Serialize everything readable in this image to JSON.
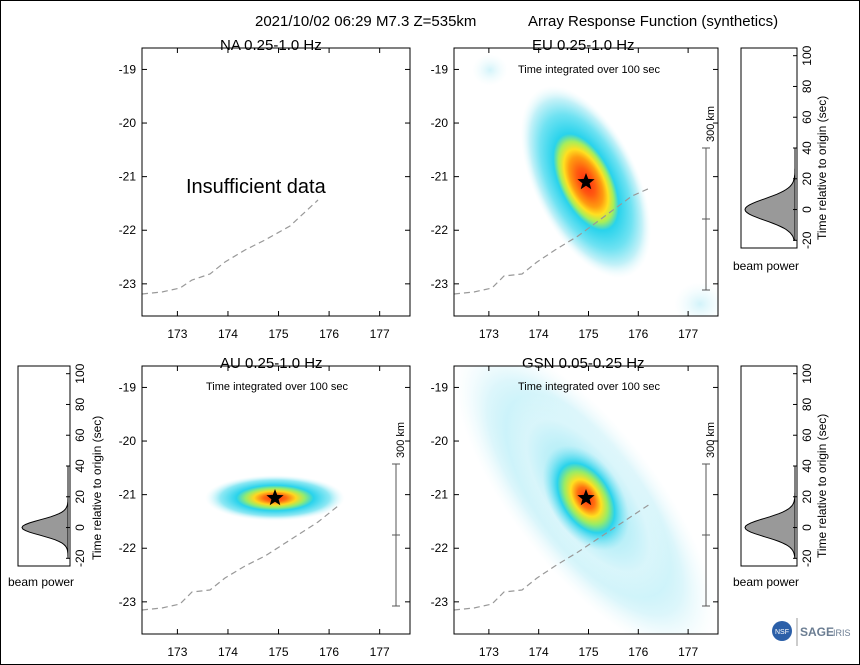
{
  "header": {
    "event": "2021/10/02 06:29  M7.3  Z=535km",
    "title": "Array Response Function (synthetics)"
  },
  "common": {
    "integration_note": "Time integrated over 100 sec",
    "scale_label": "300 km",
    "beam_power_label": "beam power",
    "time_axis_label": "Time relative to origin (sec)"
  },
  "chart_data": [
    {
      "type": "heatmap",
      "id": "NA",
      "title": "NA  0.25-1.0 Hz",
      "message": "Insufficient data",
      "x_ticks": [
        173,
        174,
        175,
        176,
        177
      ],
      "y_ticks": [
        -19,
        -20,
        -21,
        -22,
        -23
      ],
      "xlim": [
        172.3,
        177.6
      ],
      "ylim": [
        -23.6,
        -18.6
      ],
      "has_response": false
    },
    {
      "type": "heatmap",
      "id": "EU",
      "title": "EU  0.25-1.0 Hz",
      "note": "Time integrated over 100 sec",
      "x_ticks": [
        173,
        174,
        175,
        176,
        177
      ],
      "y_ticks": [
        -19,
        -20,
        -21,
        -22,
        -23
      ],
      "xlim": [
        172.3,
        177.6
      ],
      "ylim": [
        -23.6,
        -18.6
      ],
      "has_response": true,
      "peak": {
        "lon": 174.9,
        "lat": -21.1
      },
      "beam_power": {
        "peak_time_sec": 0,
        "width_sec": 7
      }
    },
    {
      "type": "heatmap",
      "id": "AU",
      "title": "AU  0.25-1.0 Hz",
      "note": "Time integrated over 100 sec",
      "x_ticks": [
        173,
        174,
        175,
        176,
        177
      ],
      "y_ticks": [
        -19,
        -20,
        -21,
        -22,
        -23
      ],
      "xlim": [
        172.3,
        177.6
      ],
      "ylim": [
        -23.6,
        -18.6
      ],
      "has_response": true,
      "peak": {
        "lon": 174.9,
        "lat": -21.1
      },
      "beam_power": {
        "peak_time_sec": 0,
        "width_sec": 5
      }
    },
    {
      "type": "heatmap",
      "id": "GSN",
      "title": "GSN  0.05-0.25 Hz",
      "note": "Time integrated over 100 sec",
      "x_ticks": [
        173,
        174,
        175,
        176,
        177
      ],
      "y_ticks": [
        -19,
        -20,
        -21,
        -22,
        -23
      ],
      "xlim": [
        172.3,
        177.6
      ],
      "ylim": [
        -23.6,
        -18.6
      ],
      "has_response": true,
      "peak": {
        "lon": 174.9,
        "lat": -21.1
      },
      "beam_power": {
        "peak_time_sec": 0,
        "width_sec": 6
      }
    }
  ],
  "beam_axis_ticks": [
    100,
    80,
    60,
    40,
    20,
    0,
    -20
  ],
  "colors": {
    "contour_outer": "#e6f7fc",
    "contour_cyan": "#29d3ec",
    "contour_green": "#b8ee4a",
    "contour_yellow": "#ffe020",
    "contour_orange": "#ff8a10",
    "contour_red": "#ff2a10",
    "trench": "#999999",
    "beam_fill": "#999999"
  },
  "logo": {
    "left_text": "NSF",
    "sage": "SAGE",
    "iris": "IRIS"
  }
}
